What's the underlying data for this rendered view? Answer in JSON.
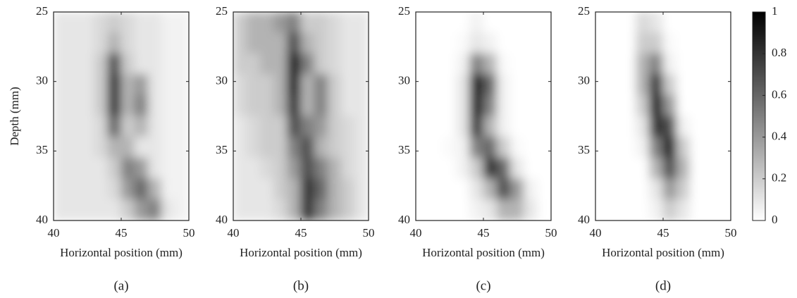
{
  "chart_data": [
    {
      "type": "heatmap",
      "caption": "(a)",
      "xlabel": "Horizontal position (mm)",
      "ylabel": "Depth (mm)",
      "x": [
        40.5,
        41.5,
        42.5,
        43.5,
        44.5,
        45.5,
        46.5,
        47.5,
        48.5,
        49.5
      ],
      "y": [
        25.75,
        27.25,
        28.75,
        30.25,
        31.75,
        33.25,
        34.75,
        36.25,
        37.75,
        39.25
      ],
      "z": [
        [
          0.1,
          0.1,
          0.1,
          0.15,
          0.2,
          0.15,
          0.1,
          0.1,
          0.05,
          0.05
        ],
        [
          0.1,
          0.1,
          0.1,
          0.15,
          0.3,
          0.15,
          0.1,
          0.1,
          0.05,
          0.05
        ],
        [
          0.1,
          0.1,
          0.1,
          0.2,
          0.7,
          0.2,
          0.1,
          0.1,
          0.05,
          0.05
        ],
        [
          0.1,
          0.1,
          0.1,
          0.2,
          0.8,
          0.3,
          0.4,
          0.1,
          0.05,
          0.05
        ],
        [
          0.1,
          0.1,
          0.1,
          0.2,
          0.8,
          0.3,
          0.5,
          0.1,
          0.05,
          0.05
        ],
        [
          0.1,
          0.1,
          0.1,
          0.15,
          0.6,
          0.2,
          0.3,
          0.1,
          0.05,
          0.05
        ],
        [
          0.1,
          0.1,
          0.1,
          0.15,
          0.3,
          0.3,
          0.1,
          0.1,
          0.05,
          0.05
        ],
        [
          0.1,
          0.1,
          0.1,
          0.1,
          0.2,
          0.5,
          0.4,
          0.1,
          0.05,
          0.05
        ],
        [
          0.1,
          0.1,
          0.1,
          0.1,
          0.15,
          0.4,
          0.6,
          0.3,
          0.05,
          0.05
        ],
        [
          0.1,
          0.1,
          0.1,
          0.1,
          0.1,
          0.2,
          0.4,
          0.5,
          0.1,
          0.05
        ]
      ],
      "xlim": [
        40,
        50
      ],
      "ylim": [
        25,
        40
      ],
      "xticks": [
        40,
        45,
        50
      ],
      "yticks": [
        25,
        30,
        35,
        40
      ],
      "y_reversed": true,
      "colormap": "gray_r"
    },
    {
      "type": "heatmap",
      "caption": "(b)",
      "xlabel": "Horizontal position (mm)",
      "x": [
        40.5,
        41.5,
        42.5,
        43.5,
        44.5,
        45.5,
        46.5,
        47.5,
        48.5,
        49.5
      ],
      "y": [
        25.75,
        27.25,
        28.75,
        30.25,
        31.75,
        33.25,
        34.75,
        36.25,
        37.75,
        39.25
      ],
      "z": [
        [
          0.2,
          0.3,
          0.3,
          0.4,
          0.5,
          0.2,
          0.2,
          0.15,
          0.1,
          0.1
        ],
        [
          0.2,
          0.3,
          0.3,
          0.3,
          0.7,
          0.3,
          0.2,
          0.15,
          0.1,
          0.1
        ],
        [
          0.2,
          0.2,
          0.3,
          0.3,
          0.9,
          0.5,
          0.2,
          0.15,
          0.1,
          0.1
        ],
        [
          0.15,
          0.2,
          0.2,
          0.3,
          0.9,
          0.3,
          0.5,
          0.2,
          0.1,
          0.1
        ],
        [
          0.15,
          0.2,
          0.2,
          0.3,
          0.8,
          0.3,
          0.5,
          0.2,
          0.1,
          0.1
        ],
        [
          0.1,
          0.15,
          0.2,
          0.2,
          0.7,
          0.5,
          0.4,
          0.2,
          0.15,
          0.1
        ],
        [
          0.1,
          0.15,
          0.2,
          0.2,
          0.5,
          0.7,
          0.3,
          0.2,
          0.15,
          0.1
        ],
        [
          0.1,
          0.1,
          0.15,
          0.2,
          0.4,
          0.7,
          0.5,
          0.3,
          0.15,
          0.1
        ],
        [
          0.1,
          0.1,
          0.1,
          0.2,
          0.3,
          0.8,
          0.6,
          0.3,
          0.2,
          0.1
        ],
        [
          0.1,
          0.1,
          0.1,
          0.15,
          0.3,
          0.8,
          0.5,
          0.3,
          0.2,
          0.1
        ]
      ],
      "xlim": [
        40,
        50
      ],
      "ylim": [
        25,
        40
      ],
      "xticks": [
        40,
        45,
        50
      ],
      "yticks": [
        25,
        30,
        35,
        40
      ],
      "y_reversed": true,
      "colormap": "gray_r"
    },
    {
      "type": "heatmap",
      "caption": "(c)",
      "xlabel": "Horizontal position (mm)",
      "x": [
        40.5,
        41.5,
        42.5,
        43.5,
        44.5,
        45.5,
        46.5,
        47.5,
        48.5,
        49.5
      ],
      "y": [
        25.75,
        27.25,
        28.75,
        30.25,
        31.75,
        33.25,
        34.75,
        36.25,
        37.75,
        39.25
      ],
      "z": [
        [
          0,
          0,
          0,
          0,
          0.05,
          0,
          0,
          0,
          0,
          0
        ],
        [
          0,
          0,
          0,
          0.02,
          0.1,
          0.05,
          0,
          0,
          0,
          0
        ],
        [
          0,
          0,
          0,
          0.05,
          0.5,
          0.3,
          0.02,
          0,
          0,
          0
        ],
        [
          0,
          0,
          0,
          0.1,
          0.9,
          0.6,
          0.05,
          0,
          0,
          0
        ],
        [
          0,
          0,
          0,
          0.1,
          0.9,
          0.5,
          0.05,
          0,
          0,
          0
        ],
        [
          0,
          0,
          0,
          0.1,
          0.8,
          0.3,
          0.05,
          0,
          0,
          0
        ],
        [
          0,
          0,
          0.02,
          0.05,
          0.5,
          0.6,
          0.2,
          0.02,
          0,
          0
        ],
        [
          0,
          0,
          0,
          0.05,
          0.2,
          0.8,
          0.6,
          0.1,
          0,
          0
        ],
        [
          0,
          0,
          0,
          0,
          0.1,
          0.3,
          0.7,
          0.4,
          0.05,
          0
        ],
        [
          0,
          0,
          0,
          0,
          0.05,
          0.1,
          0.3,
          0.3,
          0.1,
          0
        ]
      ],
      "xlim": [
        40,
        50
      ],
      "ylim": [
        25,
        40
      ],
      "xticks": [
        40,
        45,
        50
      ],
      "yticks": [
        25,
        30,
        35,
        40
      ],
      "y_reversed": true,
      "colormap": "gray_r"
    },
    {
      "type": "heatmap",
      "caption": "(d)",
      "xlabel": "Horizontal position (mm)",
      "x": [
        40.5,
        41.5,
        42.5,
        43.5,
        44.5,
        45.5,
        46.5,
        47.5,
        48.5,
        49.5
      ],
      "y": [
        25.75,
        27.25,
        28.75,
        30.25,
        31.75,
        33.25,
        34.75,
        36.25,
        37.75,
        39.25
      ],
      "z": [
        [
          0,
          0,
          0,
          0.15,
          0.1,
          0,
          0,
          0,
          0,
          0
        ],
        [
          0,
          0,
          0,
          0.2,
          0.2,
          0.02,
          0,
          0,
          0,
          0
        ],
        [
          0,
          0,
          0,
          0.3,
          0.5,
          0.05,
          0,
          0,
          0,
          0
        ],
        [
          0,
          0,
          0,
          0.3,
          0.8,
          0.2,
          0,
          0,
          0,
          0
        ],
        [
          0,
          0,
          0,
          0.2,
          0.9,
          0.4,
          0,
          0,
          0,
          0
        ],
        [
          0,
          0,
          0,
          0.1,
          0.8,
          0.7,
          0.05,
          0,
          0,
          0
        ],
        [
          0,
          0,
          0,
          0.05,
          0.5,
          0.9,
          0.2,
          0,
          0,
          0
        ],
        [
          0,
          0,
          0,
          0,
          0.3,
          0.7,
          0.3,
          0,
          0,
          0
        ],
        [
          0,
          0,
          0,
          0,
          0.1,
          0.4,
          0.2,
          0,
          0,
          0
        ],
        [
          0,
          0,
          0,
          0,
          0.05,
          0.2,
          0.1,
          0,
          0,
          0
        ]
      ],
      "xlim": [
        40,
        50
      ],
      "ylim": [
        25,
        40
      ],
      "xticks": [
        40,
        45,
        50
      ],
      "yticks": [
        25,
        30,
        35,
        40
      ],
      "y_reversed": true,
      "colormap": "gray_r"
    }
  ],
  "colorbar": {
    "lim": [
      0,
      1
    ],
    "ticks": [
      0,
      0.2,
      0.4,
      0.6,
      0.8,
      1
    ]
  }
}
